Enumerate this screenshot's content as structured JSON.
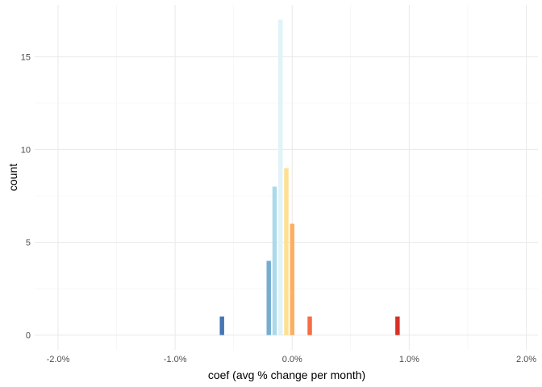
{
  "chart_data": {
    "type": "bar",
    "title": "",
    "xlabel": "coef (avg % change per month)",
    "ylabel": "count",
    "xlim": [
      -2.2,
      2.1
    ],
    "ylim": [
      -0.8,
      17.8
    ],
    "x_ticks": [
      {
        "value": -2.0,
        "label": "-2.0%"
      },
      {
        "value": -1.0,
        "label": "-1.0%"
      },
      {
        "value": 0.0,
        "label": "0.0%"
      },
      {
        "value": 1.0,
        "label": "1.0%"
      },
      {
        "value": 2.0,
        "label": "2.0%"
      }
    ],
    "x_minor_breaks": [
      -1.5,
      -0.5,
      0.5,
      1.5
    ],
    "y_ticks": [
      {
        "value": 0,
        "label": "0"
      },
      {
        "value": 5,
        "label": "5"
      },
      {
        "value": 10,
        "label": "10"
      },
      {
        "value": 15,
        "label": "15"
      }
    ],
    "y_minor_breaks": [
      2.5,
      7.5,
      12.5
    ],
    "grid": true,
    "legend": "none",
    "bin_width": 0.05,
    "bars": [
      {
        "x": -0.6,
        "count": 1,
        "color": "#4575b4"
      },
      {
        "x": -0.2,
        "count": 4,
        "color": "#74add1"
      },
      {
        "x": -0.15,
        "count": 8,
        "color": "#abd9e9"
      },
      {
        "x": -0.1,
        "count": 17,
        "color": "#e0f3f8"
      },
      {
        "x": -0.05,
        "count": 9,
        "color": "#fee090"
      },
      {
        "x": 0.0,
        "count": 6,
        "color": "#fdae61"
      },
      {
        "x": 0.15,
        "count": 1,
        "color": "#f46d43"
      },
      {
        "x": 0.9,
        "count": 1,
        "color": "#d73027"
      }
    ],
    "colors": {
      "grid_major": "#ebebeb",
      "grid_minor": "#f2f2f2"
    }
  }
}
